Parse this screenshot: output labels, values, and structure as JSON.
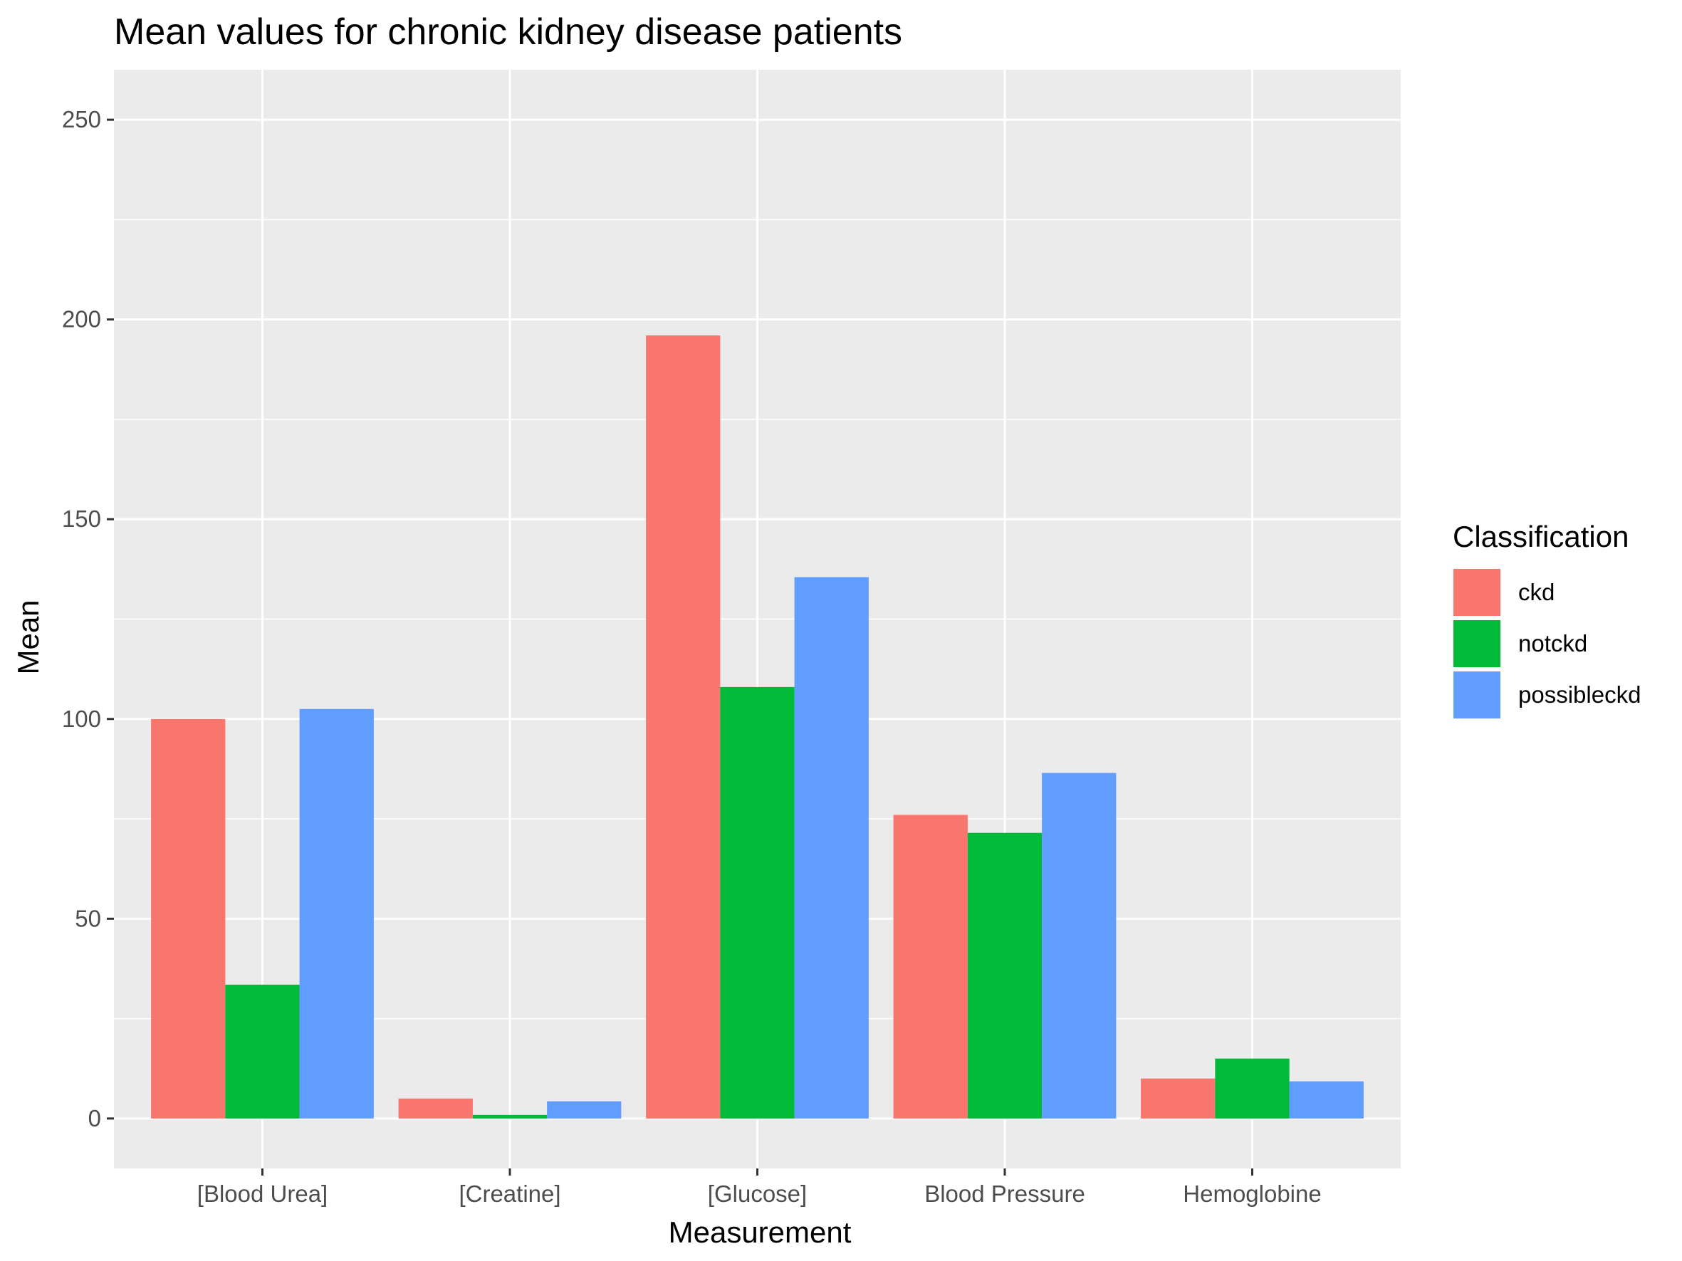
{
  "chart_data": {
    "type": "bar",
    "title": "Mean values for chronic kidney disease patients",
    "xlabel": "Measurement",
    "ylabel": "Mean",
    "categories": [
      "[Blood Urea]",
      "[Creatine]",
      "[Glucose]",
      "Blood Pressure",
      "Hemoglobine"
    ],
    "series": [
      {
        "name": "ckd",
        "color": "#F8766D",
        "values": [
          100,
          5,
          196,
          76,
          10
        ]
      },
      {
        "name": "notckd",
        "color": "#00BA38",
        "values": [
          33.5,
          0.9,
          108,
          71.5,
          15
        ]
      },
      {
        "name": "possibleckd",
        "color": "#619CFF",
        "values": [
          102.5,
          4.3,
          135.5,
          86.5,
          9.3
        ]
      }
    ],
    "ylim": [
      -12.5,
      262.5
    ],
    "yticks": [
      0,
      50,
      100,
      150,
      200,
      250
    ],
    "grid": true,
    "legend": {
      "title": "Classification",
      "position": "right"
    },
    "panel_background": "#EBEBEB",
    "grid_color": "#FFFFFF"
  }
}
